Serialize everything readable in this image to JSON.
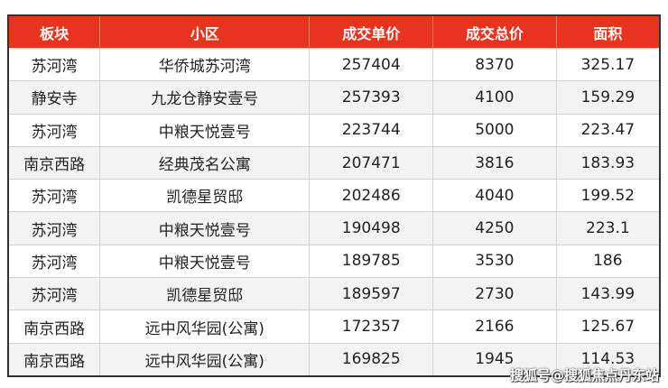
{
  "table": {
    "headers": [
      "板块",
      "小区",
      "成交单价",
      "成交总价",
      "面积"
    ],
    "rows": [
      [
        "苏河湾",
        "华侨城苏河湾",
        "257404",
        "8370",
        "325.17"
      ],
      [
        "静安寺",
        "九龙仓静安壹号",
        "257393",
        "4100",
        "159.29"
      ],
      [
        "苏河湾",
        "中粮天悦壹号",
        "223744",
        "5000",
        "223.47"
      ],
      [
        "南京西路",
        "经典茂名公寓",
        "207471",
        "3816",
        "183.93"
      ],
      [
        "苏河湾",
        "凯德星贸邸",
        "202486",
        "4040",
        "199.52"
      ],
      [
        "苏河湾",
        "中粮天悦壹号",
        "190498",
        "4250",
        "223.1"
      ],
      [
        "苏河湾",
        "中粮天悦壹号",
        "189785",
        "3530",
        "186"
      ],
      [
        "苏河湾",
        "凯德星贸邸",
        "189597",
        "2730",
        "143.99"
      ],
      [
        "南京西路",
        "远中风华园(公寓)",
        "172357",
        "2166",
        "125.67"
      ],
      [
        "南京西路",
        "远中风华园(公寓)",
        "169825",
        "1945",
        "114.53"
      ]
    ]
  },
  "watermark": "搜狐号@搜狐焦点丹东站",
  "colors": {
    "header_bg": "#e8341f"
  }
}
